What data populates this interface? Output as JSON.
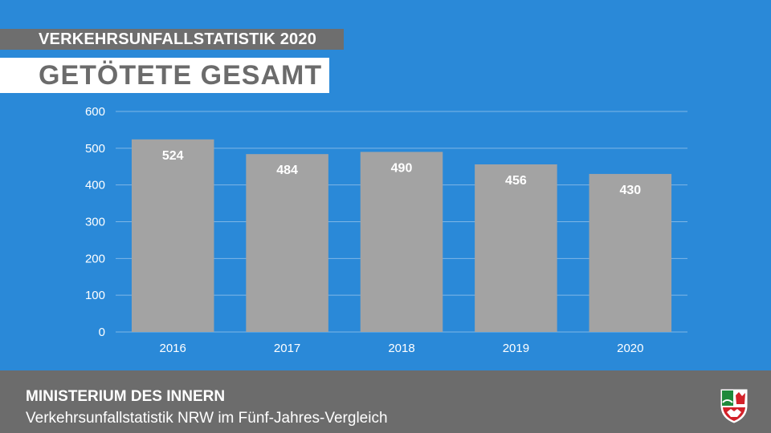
{
  "header": {
    "kicker": "VERKEHRSUNFALLSTATISTIK 2020",
    "headline": "GETÖTETE GESAMT"
  },
  "footer": {
    "organization": "MINISTERIUM DES INNERN",
    "subtitle": "Verkehrsunfallstatistik NRW im Fünf-Jahres-Vergleich",
    "logo_icon": "nrw-coat-of-arms-icon"
  },
  "colors": {
    "background": "#2a89d8",
    "bar": "#a3a3a3",
    "gridline": "#7fb6e6",
    "bar_label": "#ffffff",
    "tick_label": "#ffffff",
    "footer": "#6c6c6c",
    "kicker_bar": "#6e6e6e"
  },
  "chart_data": {
    "type": "bar",
    "categories": [
      "2016",
      "2017",
      "2018",
      "2019",
      "2020"
    ],
    "values": [
      524,
      484,
      490,
      456,
      430
    ],
    "title": "",
    "xlabel": "",
    "ylabel": "",
    "ylim": [
      0,
      600
    ],
    "yticks": [
      0,
      100,
      200,
      300,
      400,
      500,
      600
    ],
    "grid": true,
    "data_labels": true,
    "legend": "none"
  }
}
